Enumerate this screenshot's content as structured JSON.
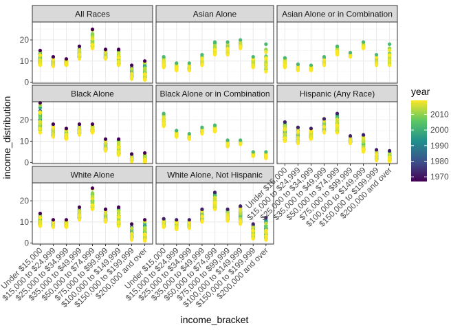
{
  "chart_data": {
    "type": "scatter",
    "xlabel": "income_bracket",
    "ylabel": "income_distribution",
    "categories": [
      "Under $15,000",
      "$15,000 to $24,999",
      "$25,000 to $34,999",
      "$35,000 to $49,999",
      "$50,000 to $74,999",
      "$75,000 to $99,999",
      "$100,000 to $149,999",
      "$150,000 to $199,999",
      "$200,000 and over"
    ],
    "ylim": [
      -0.5,
      28.5
    ],
    "yticks": [
      0,
      10,
      20
    ],
    "grid": true,
    "legend": {
      "title": "year",
      "placement": "right",
      "colorbar_range": [
        1967,
        2019
      ],
      "ticks": [
        1970,
        1980,
        1990,
        2000,
        2010
      ],
      "colors": [
        "#440154",
        "#3b528b",
        "#21908c",
        "#5dc863",
        "#fde725"
      ]
    },
    "panels": [
      {
        "title": "All Races",
        "series": [
          {
            "year_range": [
              1967,
              2019
            ],
            "min": [
              8,
              7.5,
              8,
              11,
              16,
              11,
              8,
              1.5,
              1
            ],
            "max": [
              15,
              12,
              11,
              17,
              25,
              15.5,
              15.5,
              8,
              10
            ]
          }
        ]
      },
      {
        "title": "Asian Alone",
        "series": [
          {
            "year_range": [
              2002,
              2019
            ],
            "min": [
              7,
              5.5,
              5.5,
              8,
              13,
              13,
              16,
              7,
              5
            ],
            "max": [
              12,
              9,
              9,
              13,
              19,
              19,
              20,
              12,
              18
            ]
          }
        ]
      },
      {
        "title": "Asian Alone or in Combination",
        "series": [
          {
            "year_range": [
              2002,
              2019
            ],
            "min": [
              7,
              5.5,
              5.5,
              8,
              13,
              12,
              16,
              8,
              8
            ],
            "max": [
              11.5,
              8.5,
              8,
              12,
              17,
              14,
              19,
              13,
              18
            ]
          }
        ]
      },
      {
        "title": "Black Alone",
        "series": [
          {
            "year_range": [
              1967,
              2019
            ],
            "min": [
              14,
              12,
              11,
              13,
              14,
              5.5,
              3.5,
              0.5,
              0
            ],
            "max": [
              28,
              18,
              16,
              18,
              18,
              11,
              11,
              4,
              4.5
            ]
          }
        ]
      },
      {
        "title": "Black Alone or in Combination",
        "series": [
          {
            "year_range": [
              2002,
              2019
            ],
            "min": [
              17,
              12,
              11,
              13.5,
              14.5,
              7.5,
              8.5,
              3,
              2
            ],
            "max": [
              23,
              15,
              13.5,
              16.5,
              17.5,
              10.5,
              10.5,
              5,
              5
            ]
          }
        ]
      },
      {
        "title": "Hispanic (Any Race)",
        "series": [
          {
            "year_range": [
              1972,
              2019
            ],
            "min": [
              10,
              9,
              11,
              14,
              14,
              9,
              5,
              1,
              0.5
            ],
            "max": [
              19,
              16.5,
              16,
              20.5,
              23,
              12.5,
              13,
              6,
              5.5
            ]
          }
        ]
      },
      {
        "title": "White Alone",
        "series": [
          {
            "year_range": [
              1967,
              2019
            ],
            "min": [
              8,
              7.5,
              7.5,
              11,
              16,
              10,
              8,
              1.5,
              1
            ],
            "max": [
              14,
              11,
              11,
              17,
              26,
              16,
              17,
              9,
              11
            ]
          }
        ]
      },
      {
        "title": "White Alone, Not Hispanic",
        "series": [
          {
            "year_range": [
              1972,
              2019
            ],
            "min": [
              7.5,
              6.5,
              7,
              10,
              16,
              10.5,
              9,
              2,
              1.5
            ],
            "max": [
              11.5,
              11,
              11,
              16,
              24,
              16,
              17.5,
              9,
              12
            ]
          }
        ]
      }
    ]
  }
}
